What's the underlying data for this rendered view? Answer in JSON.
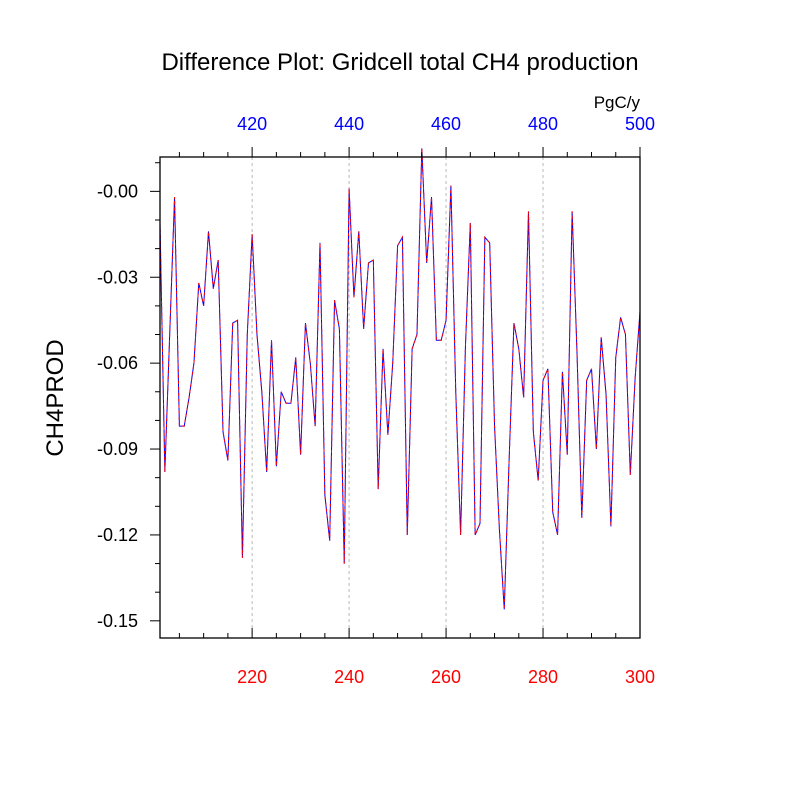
{
  "chart_data": {
    "type": "line",
    "title": "Difference Plot: Gridcell total CH4 production",
    "ylabel": "CH4PROD",
    "top_axis_unit": "PgC/y",
    "x_bottom": {
      "range": [
        201,
        300
      ],
      "ticks": [
        220,
        240,
        260,
        280,
        300
      ],
      "color": "#ff0000"
    },
    "x_top": {
      "range": [
        401,
        500
      ],
      "ticks": [
        420,
        440,
        460,
        480,
        500
      ],
      "color": "#0000ff"
    },
    "y": {
      "range": [
        -0.156,
        0.012
      ],
      "ticks": [
        0.0,
        -0.03,
        -0.06,
        -0.09,
        -0.12,
        -0.15
      ],
      "tick_labels": [
        "-0.00",
        "-0.03",
        "-0.06",
        "-0.09",
        "-0.12",
        "-0.15"
      ]
    },
    "vertical_grid": "dashed at major x ticks",
    "series": [
      {
        "color": "#0000ff",
        "style": "solid",
        "x": [
          201,
          202,
          203,
          204,
          205,
          206,
          207,
          208,
          209,
          210,
          211,
          212,
          213,
          214,
          215,
          216,
          217,
          218,
          219,
          220,
          221,
          222,
          223,
          224,
          225,
          226,
          227,
          228,
          229,
          230,
          231,
          232,
          233,
          234,
          235,
          236,
          237,
          238,
          239,
          240,
          241,
          242,
          243,
          244,
          245,
          246,
          247,
          248,
          249,
          250,
          251,
          252,
          253,
          254,
          255,
          256,
          257,
          258,
          259,
          260,
          261,
          262,
          263,
          264,
          265,
          266,
          267,
          268,
          269,
          270,
          271,
          272,
          273,
          274,
          275,
          276,
          277,
          278,
          279,
          280,
          281,
          282,
          283,
          284,
          285,
          286,
          287,
          288,
          289,
          290,
          291,
          292,
          293,
          294,
          295,
          296,
          297,
          298,
          299,
          300
        ],
        "values": [
          -0.011,
          -0.098,
          -0.05,
          -0.002,
          -0.082,
          -0.082,
          -0.072,
          -0.06,
          -0.032,
          -0.04,
          -0.014,
          -0.034,
          -0.024,
          -0.084,
          -0.094,
          -0.046,
          -0.045,
          -0.128,
          -0.05,
          -0.015,
          -0.05,
          -0.07,
          -0.098,
          -0.052,
          -0.096,
          -0.07,
          -0.074,
          -0.074,
          -0.058,
          -0.092,
          -0.046,
          -0.06,
          -0.082,
          -0.018,
          -0.106,
          -0.122,
          -0.038,
          -0.048,
          -0.13,
          0.001,
          -0.037,
          -0.014,
          -0.048,
          -0.025,
          -0.024,
          -0.104,
          -0.055,
          -0.085,
          -0.06,
          -0.019,
          -0.016,
          -0.12,
          -0.055,
          -0.05,
          0.015,
          -0.025,
          -0.002,
          -0.052,
          -0.052,
          -0.045,
          0.002,
          -0.07,
          -0.12,
          -0.054,
          -0.011,
          -0.12,
          -0.116,
          -0.016,
          -0.018,
          -0.082,
          -0.118,
          -0.146,
          -0.094,
          -0.046,
          -0.055,
          -0.072,
          -0.007,
          -0.084,
          -0.101,
          -0.066,
          -0.062,
          -0.112,
          -0.12,
          -0.063,
          -0.092,
          -0.007,
          -0.056,
          -0.114,
          -0.066,
          -0.062,
          -0.09,
          -0.051,
          -0.071,
          -0.117,
          -0.058,
          -0.044,
          -0.05,
          -0.099,
          -0.065,
          -0.042
        ]
      },
      {
        "color": "#ff0000",
        "style": "dashed",
        "x": [
          201,
          202,
          203,
          204,
          205,
          206,
          207,
          208,
          209,
          210,
          211,
          212,
          213,
          214,
          215,
          216,
          217,
          218,
          219,
          220,
          221,
          222,
          223,
          224,
          225,
          226,
          227,
          228,
          229,
          230,
          231,
          232,
          233,
          234,
          235,
          236,
          237,
          238,
          239,
          240,
          241,
          242,
          243,
          244,
          245,
          246,
          247,
          248,
          249,
          250,
          251,
          252,
          253,
          254,
          255,
          256,
          257,
          258,
          259,
          260,
          261,
          262,
          263,
          264,
          265,
          266,
          267,
          268,
          269,
          270,
          271,
          272,
          273,
          274,
          275,
          276,
          277,
          278,
          279,
          280,
          281,
          282,
          283,
          284,
          285,
          286,
          287,
          288,
          289,
          290,
          291,
          292,
          293,
          294,
          295,
          296,
          297,
          298,
          299,
          300
        ],
        "values": [
          -0.011,
          -0.098,
          -0.05,
          -0.002,
          -0.082,
          -0.082,
          -0.072,
          -0.06,
          -0.032,
          -0.04,
          -0.014,
          -0.034,
          -0.024,
          -0.084,
          -0.094,
          -0.046,
          -0.045,
          -0.128,
          -0.05,
          -0.015,
          -0.05,
          -0.07,
          -0.098,
          -0.052,
          -0.096,
          -0.07,
          -0.074,
          -0.074,
          -0.058,
          -0.092,
          -0.046,
          -0.06,
          -0.082,
          -0.018,
          -0.106,
          -0.122,
          -0.038,
          -0.048,
          -0.13,
          0.001,
          -0.037,
          -0.014,
          -0.048,
          -0.025,
          -0.024,
          -0.104,
          -0.055,
          -0.085,
          -0.06,
          -0.019,
          -0.016,
          -0.12,
          -0.055,
          -0.05,
          0.015,
          -0.025,
          -0.002,
          -0.052,
          -0.052,
          -0.045,
          0.002,
          -0.07,
          -0.12,
          -0.054,
          -0.011,
          -0.12,
          -0.116,
          -0.016,
          -0.018,
          -0.082,
          -0.118,
          -0.146,
          -0.094,
          -0.046,
          -0.055,
          -0.072,
          -0.007,
          -0.084,
          -0.101,
          -0.066,
          -0.062,
          -0.112,
          -0.12,
          -0.063,
          -0.092,
          -0.007,
          -0.056,
          -0.114,
          -0.066,
          -0.062,
          -0.09,
          -0.051,
          -0.071,
          -0.117,
          -0.058,
          -0.044,
          -0.05,
          -0.099,
          -0.065,
          -0.042
        ]
      }
    ]
  }
}
